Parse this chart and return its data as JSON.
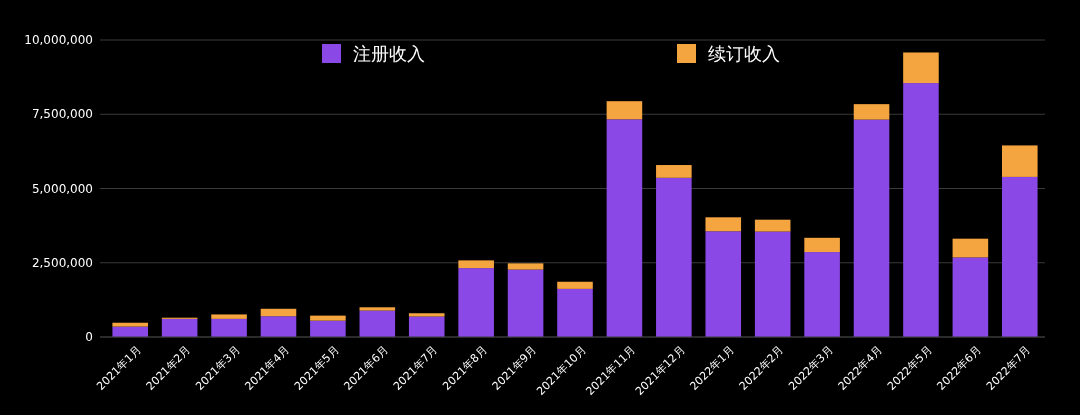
{
  "chart_data": {
    "type": "bar",
    "stacked": true,
    "categories": [
      "2021年1月",
      "2021年2月",
      "2021年3月",
      "2021年4月",
      "2021年5月",
      "2021年6月",
      "2021年7月",
      "2021年8月",
      "2021年9月",
      "2021年10月",
      "2021年11月",
      "2021年12月",
      "2022年1月",
      "2022年2月",
      "2022年3月",
      "2022年4月",
      "2022年5月",
      "2022年6月",
      "2022年7月"
    ],
    "series": [
      {
        "name": "注册收入",
        "color": "#8a48e6",
        "values": [
          350000,
          610000,
          610000,
          700000,
          550000,
          890000,
          690000,
          2320000,
          2270000,
          1620000,
          7330000,
          5360000,
          3560000,
          3550000,
          2860000,
          7320000,
          8550000,
          2680000,
          5390000
        ]
      },
      {
        "name": "续订收入",
        "color": "#f5a540",
        "values": [
          130000,
          40000,
          150000,
          250000,
          170000,
          110000,
          110000,
          260000,
          210000,
          240000,
          610000,
          430000,
          470000,
          400000,
          480000,
          520000,
          1030000,
          630000,
          1060000
        ]
      }
    ],
    "ylim": [
      0,
      10000000
    ],
    "yticks": [
      {
        "value": 0,
        "label": "0"
      },
      {
        "value": 2500000,
        "label": "2,500,000"
      },
      {
        "value": 5000000,
        "label": "5,000,000"
      },
      {
        "value": 7500000,
        "label": "7,500,000"
      },
      {
        "value": 10000000,
        "label": "10,000,000"
      }
    ],
    "grid": "y",
    "legend": "top"
  }
}
